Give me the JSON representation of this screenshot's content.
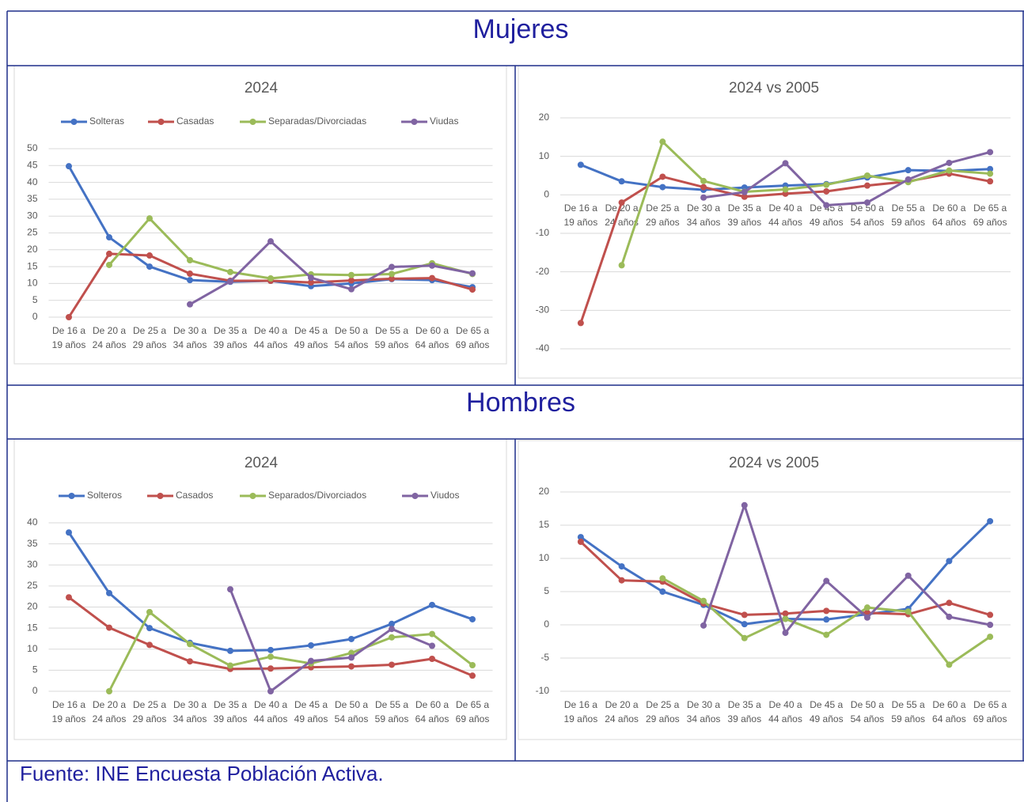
{
  "headings": [
    "Mujeres",
    "Hombres"
  ],
  "source": "Fuente: INE Encuesta Población Activa.",
  "chart_data": [
    {
      "type": "line",
      "title": "2024",
      "categories": [
        "De 16 a 19 años",
        "De 20 a 24 años",
        "De 25 a 29 años",
        "De 30 a 34 años",
        "De 35 a 39 años",
        "De 40 a 44 años",
        "De 45 a 49 años",
        "De 50 a 54 años",
        "De 55 a 59 años",
        "De 60 a 64 años",
        "De 65 a 69 años"
      ],
      "ylim": [
        0,
        50
      ],
      "yticks": [
        0,
        5,
        10,
        15,
        20,
        25,
        30,
        35,
        40,
        45,
        50
      ],
      "grid": true,
      "legend": "top",
      "series": [
        {
          "name": "Solteras",
          "color": "#4472c4",
          "values": [
            44.8,
            23.7,
            15.0,
            11.0,
            10.5,
            10.8,
            9.2,
            10.0,
            11.3,
            11.0,
            8.9
          ]
        },
        {
          "name": "Casadas",
          "color": "#c0504d",
          "values": [
            0,
            18.8,
            18.3,
            12.9,
            10.8,
            10.8,
            10.3,
            10.9,
            11.4,
            11.6,
            8.2
          ]
        },
        {
          "name": "Separadas/Divorciadas",
          "color": "#9bbb59",
          "values": [
            null,
            15.5,
            29.3,
            16.9,
            13.4,
            11.5,
            12.7,
            12.5,
            12.8,
            16.0,
            12.8
          ]
        },
        {
          "name": "Viudas",
          "color": "#8064a2",
          "values": [
            null,
            null,
            null,
            3.8,
            10.6,
            22.5,
            11.7,
            8.3,
            14.9,
            15.3,
            13.0
          ]
        }
      ]
    },
    {
      "type": "line",
      "title": "2024 vs 2005",
      "categories": [
        "De 16 a 19 años",
        "De 20 a 24 años",
        "De 25 a 29 años",
        "De 30 a 34 años",
        "De 35 a 39 años",
        "De 40 a 44 años",
        "De 45 a 49 años",
        "De 50 a 54 años",
        "De 55 a 59 años",
        "De 60 a 64 años",
        "De 65 a 69 años"
      ],
      "ylim": [
        -40,
        20
      ],
      "yticks": [
        -40,
        -30,
        -20,
        -10,
        0,
        10,
        20
      ],
      "grid": true,
      "series": [
        {
          "color": "#4472c4",
          "values": [
            7.8,
            3.5,
            2.0,
            1.3,
            1.9,
            2.4,
            2.8,
            4.5,
            6.4,
            6.2,
            6.7
          ]
        },
        {
          "color": "#c0504d",
          "values": [
            -33.3,
            -2.0,
            4.7,
            2.0,
            -0.5,
            0.3,
            0.9,
            2.4,
            3.5,
            5.5,
            3.5
          ]
        },
        {
          "color": "#9bbb59",
          "values": [
            null,
            -18.3,
            13.8,
            3.6,
            0.8,
            1.4,
            2.6,
            5.0,
            3.3,
            6.3,
            5.5
          ]
        },
        {
          "color": "#8064a2",
          "values": [
            null,
            null,
            null,
            -0.7,
            0.7,
            8.2,
            -2.7,
            -2.0,
            4.0,
            8.3,
            11.1
          ]
        }
      ]
    },
    {
      "type": "line",
      "title": "2024",
      "categories": [
        "De 16 a 19 años",
        "De 20 a 24 años",
        "De 25 a 29 años",
        "De 30 a 34 años",
        "De 35 a 39 años",
        "De 40 a 44 años",
        "De 45 a 49 años",
        "De 50 a 54 años",
        "De 55 a 59 años",
        "De 60 a 64 años",
        "De 65 a 69 años"
      ],
      "ylim": [
        0,
        40
      ],
      "yticks": [
        0,
        5,
        10,
        15,
        20,
        25,
        30,
        35,
        40
      ],
      "grid": true,
      "legend": "top",
      "series": [
        {
          "name": "Solteros",
          "color": "#4472c4",
          "values": [
            37.7,
            23.3,
            15.0,
            11.5,
            9.6,
            9.8,
            10.9,
            12.4,
            16.0,
            20.5,
            17.1
          ]
        },
        {
          "name": "Casados",
          "color": "#c0504d",
          "values": [
            22.3,
            15.1,
            11.0,
            7.1,
            5.3,
            5.4,
            5.7,
            5.9,
            6.3,
            7.7,
            3.7
          ]
        },
        {
          "name": "Separados/Divorciados",
          "color": "#9bbb59",
          "values": [
            null,
            0,
            18.8,
            11.2,
            6.1,
            8.2,
            6.6,
            9.1,
            12.8,
            13.6,
            6.2
          ]
        },
        {
          "name": "Viudos",
          "color": "#8064a2",
          "values": [
            null,
            null,
            null,
            null,
            24.2,
            0,
            7.2,
            8.0,
            14.8,
            10.8,
            null
          ]
        }
      ]
    },
    {
      "type": "line",
      "title": "2024 vs 2005",
      "categories": [
        "De 16 a 19 años",
        "De 20 a 24 años",
        "De 25 a 29 años",
        "De 30 a 34 años",
        "De 35 a 39 años",
        "De 40 a 44 años",
        "De 45 a 49 años",
        "De 50 a 54 años",
        "De 55 a 59 años",
        "De 60 a 64 años",
        "De 65 a 69 años"
      ],
      "ylim": [
        -10,
        20
      ],
      "yticks": [
        -10,
        -5,
        0,
        5,
        10,
        15,
        20
      ],
      "grid": true,
      "series": [
        {
          "color": "#4472c4",
          "values": [
            13.2,
            8.8,
            5.0,
            3.0,
            0.1,
            0.9,
            0.8,
            1.6,
            2.4,
            9.6,
            15.6
          ]
        },
        {
          "color": "#c0504d",
          "values": [
            12.5,
            6.7,
            6.5,
            3.2,
            1.5,
            1.7,
            2.1,
            1.8,
            1.6,
            3.3,
            1.5
          ]
        },
        {
          "color": "#9bbb59",
          "values": [
            null,
            null,
            7.0,
            3.6,
            -2.0,
            0.9,
            -1.5,
            2.6,
            2.0,
            -6.0,
            -1.8
          ]
        },
        {
          "color": "#8064a2",
          "values": [
            null,
            null,
            null,
            -0.1,
            18.0,
            -1.2,
            6.6,
            1.1,
            7.4,
            1.2,
            0
          ]
        }
      ]
    }
  ]
}
